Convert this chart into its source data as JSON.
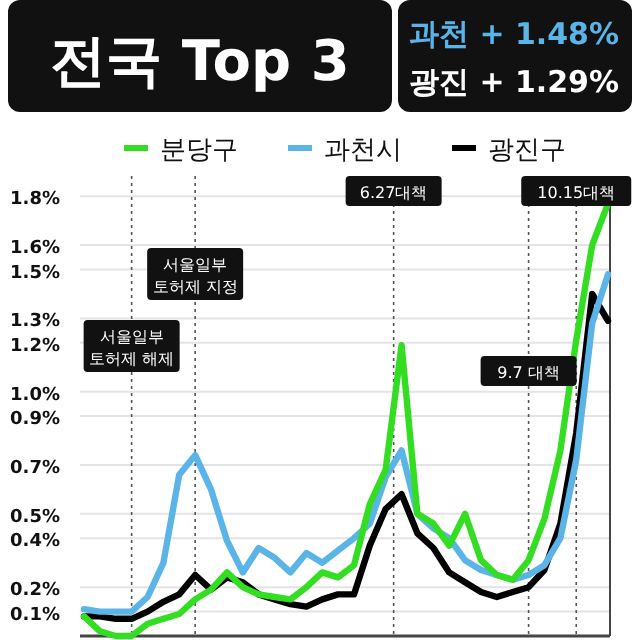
{
  "chart_data": {
    "type": "line",
    "title": "전국 Top 3",
    "annotations": [
      "과천 + 1.48%",
      "광진 + 1.29%",
      "서울일부\n토허제 해제",
      "서울일부\n토허제 지정",
      "6.27대책",
      "9.7 대책",
      "10.15대책"
    ],
    "legend": "top",
    "grid": true,
    "tick_labels": "y",
    "line_style": "solid",
    "marker": "none",
    "categories": [
      null,
      null,
      null,
      null,
      null,
      null,
      null,
      null,
      null,
      null,
      null,
      null,
      null,
      null,
      null,
      null,
      null,
      null,
      null,
      null,
      null,
      null,
      null,
      null,
      null,
      null,
      null,
      null,
      null,
      null,
      null,
      null,
      null,
      null
    ],
    "ylim": [
      0,
      1.85
    ],
    "yticks": [
      {
        "value": 0.1,
        "label": "0.1%"
      },
      {
        "value": 0.2,
        "label": "0.2%"
      },
      {
        "value": 0.4,
        "label": "0.4%"
      },
      {
        "value": 0.5,
        "label": "0.5%"
      },
      {
        "value": 0.7,
        "label": "0.7%"
      },
      {
        "value": 0.9,
        "label": "0.9%"
      },
      {
        "value": 1.0,
        "label": "1.0%"
      },
      {
        "value": 1.2,
        "label": "1.2%"
      },
      {
        "value": 1.3,
        "label": "1.3%"
      },
      {
        "value": 1.5,
        "label": "1.5%"
      },
      {
        "value": 1.6,
        "label": "1.6%"
      },
      {
        "value": 1.8,
        "label": "1.8%"
      }
    ],
    "series": [
      {
        "name": "분당구",
        "color": "#33dd22",
        "values": [
          0.08,
          0.02,
          0,
          0,
          0.05,
          0.07,
          0.09,
          0.15,
          0.19,
          0.26,
          0.2,
          0.17,
          0.16,
          0.15,
          0.2,
          0.26,
          0.24,
          0.29,
          0.54,
          0.68,
          1.19,
          0.5,
          0.46,
          0.37,
          0.5,
          0.31,
          0.25,
          0.23,
          0.31,
          0.48,
          0.76,
          1.21,
          1.6,
          1.77
        ]
      },
      {
        "name": "과천시",
        "color": "#5ab4e8",
        "values": [
          0.11,
          0.1,
          0.1,
          0.1,
          0.16,
          0.3,
          0.66,
          0.74,
          0.6,
          0.39,
          0.26,
          0.36,
          0.32,
          0.26,
          0.34,
          0.3,
          0.35,
          0.4,
          0.46,
          0.65,
          0.76,
          0.5,
          0.44,
          0.4,
          0.31,
          0.27,
          0.25,
          0.23,
          0.25,
          0.29,
          0.4,
          0.72,
          1.28,
          1.48
        ]
      },
      {
        "name": "광진구",
        "color": "#000000",
        "values": [
          0.08,
          0.08,
          0.07,
          0.07,
          0.1,
          0.14,
          0.17,
          0.25,
          0.19,
          0.24,
          0.22,
          0.17,
          0.15,
          0.13,
          0.12,
          0.15,
          0.17,
          0.17,
          0.37,
          0.52,
          0.58,
          0.42,
          0.36,
          0.26,
          0.22,
          0.18,
          0.16,
          0.18,
          0.2,
          0.27,
          0.46,
          0.83,
          1.4,
          1.29
        ]
      }
    ]
  }
}
